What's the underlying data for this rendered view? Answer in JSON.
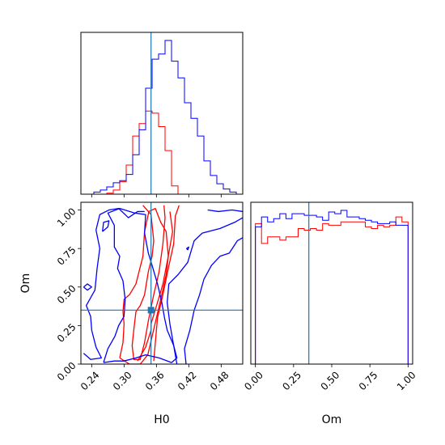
{
  "chart_data": {
    "type": "corner",
    "parameters": [
      "H0",
      "Om"
    ],
    "truths": {
      "H0": 0.35,
      "Om": 0.35
    },
    "truth_color": "#1f77b4",
    "series": [
      {
        "color": "#ff0000"
      },
      {
        "color": "#0000ff"
      }
    ],
    "panels": [
      {
        "id": "hist-H0",
        "type": "histogram",
        "param": "H0",
        "xlim": [
          0.22,
          0.52
        ],
        "bin_edges": [
          0.22,
          0.232,
          0.244,
          0.256,
          0.268,
          0.28,
          0.292,
          0.304,
          0.316,
          0.328,
          0.34,
          0.352,
          0.364,
          0.376,
          0.388,
          0.4,
          0.412,
          0.424,
          0.436,
          0.448,
          0.46,
          0.472,
          0.484,
          0.496,
          0.508,
          0.52
        ],
        "series": [
          {
            "color": "#ff0000",
            "counts": [
              0,
              0,
              0,
              0,
              1,
              4,
              12,
              28,
              56,
              68,
              80,
              78,
              65,
              42,
              8,
              0,
              0,
              0,
              0,
              0,
              0,
              0,
              0,
              0,
              0
            ]
          },
          {
            "color": "#0000ff",
            "counts": [
              0,
              0,
              2,
              4,
              7,
              11,
              13,
              19,
              38,
              62,
              102,
              130,
              135,
              148,
              128,
              112,
              88,
              73,
              56,
              32,
              18,
              10,
              5,
              2,
              0
            ]
          }
        ]
      },
      {
        "id": "contour-H0-Om",
        "type": "contour",
        "xparam": "H0",
        "yparam": "Om",
        "xlim": [
          0.22,
          0.52
        ],
        "ylim": [
          0.0,
          1.05
        ],
        "xticks": [
          "0.24",
          "0.30",
          "0.36",
          "0.42",
          "0.48"
        ],
        "yticks": [
          "0.00",
          "0.25",
          "0.50",
          "0.75",
          "1.00"
        ],
        "xlabel": "H0",
        "ylabel": "Om",
        "series": [
          {
            "color": "#ff0000",
            "levels": [
              [
                [
                  0.335,
                  1.03
                ],
                [
                  0.35,
                  0.97
                ],
                [
                  0.355,
                  0.8
                ],
                [
                  0.352,
                  0.7
                ],
                [
                  0.345,
                  0.6
                ],
                [
                  0.338,
                  0.45
                ],
                [
                  0.33,
                  0.38
                ],
                [
                  0.322,
                  0.34
                ],
                [
                  0.318,
                  0.22
                ],
                [
                  0.315,
                  0.12
                ],
                [
                  0.318,
                  0.03
                ],
                [
                  0.33,
                  0.03
                ],
                [
                  0.338,
                  0.14
                ],
                [
                  0.345,
                  0.28
                ],
                [
                  0.355,
                  0.45
                ],
                [
                  0.365,
                  0.6
                ],
                [
                  0.372,
                  0.78
                ],
                [
                  0.376,
                  0.95
                ],
                [
                  0.374,
                  1.03
                ]
              ],
              [
                [
                  0.292,
                  0.04
                ],
                [
                  0.298,
                  0.14
                ],
                [
                  0.3,
                  0.26
                ],
                [
                  0.298,
                  0.34
                ],
                [
                  0.3,
                  0.42
                ],
                [
                  0.31,
                  0.45
                ],
                [
                  0.322,
                  0.52
                ],
                [
                  0.335,
                  0.7
                ],
                [
                  0.338,
                  0.86
                ],
                [
                  0.346,
                  0.99
                ],
                [
                  0.358,
                  1.01
                ],
                [
                  0.368,
                  0.92
                ],
                [
                  0.378,
                  0.86
                ],
                [
                  0.382,
                  0.7
                ],
                [
                  0.378,
                  0.58
                ],
                [
                  0.368,
                  0.42
                ],
                [
                  0.36,
                  0.3
                ],
                [
                  0.352,
                  0.18
                ],
                [
                  0.344,
                  0.06
                ],
                [
                  0.33,
                  0.0
                ],
                [
                  0.31,
                  0.0
                ],
                [
                  0.292,
                  0.04
                ]
              ],
              [
                [
                  0.355,
                  0.02
                ],
                [
                  0.358,
                  0.14
                ],
                [
                  0.362,
                  0.3
                ],
                [
                  0.372,
                  0.45
                ],
                [
                  0.382,
                  0.62
                ],
                [
                  0.392,
                  0.78
                ],
                [
                  0.395,
                  0.96
                ],
                [
                  0.402,
                  1.03
                ]
              ],
              [
                [
                  0.325,
                  0.02
                ],
                [
                  0.34,
                  0.11
                ],
                [
                  0.35,
                  0.22
                ],
                [
                  0.35,
                  0.26
                ],
                [
                  0.362,
                  0.4
                ],
                [
                  0.372,
                  0.52
                ],
                [
                  0.382,
                  0.7
                ],
                [
                  0.39,
                  0.86
                ],
                [
                  0.385,
                  0.99
                ]
              ]
            ]
          },
          {
            "color": "#0000ff",
            "levels": [
              [
                [
                  0.262,
                  0.01
                ],
                [
                  0.27,
                  0.1
                ],
                [
                  0.283,
                  0.18
                ],
                [
                  0.29,
                  0.25
                ],
                [
                  0.3,
                  0.31
                ],
                [
                  0.302,
                  0.42
                ],
                [
                  0.298,
                  0.54
                ],
                [
                  0.288,
                  0.62
                ],
                [
                  0.292,
                  0.7
                ],
                [
                  0.282,
                  0.76
                ],
                [
                  0.282,
                  0.9
                ],
                [
                  0.27,
                  0.98
                ],
                [
                  0.292,
                  1.01
                ],
                [
                  0.32,
                  0.98
                ],
                [
                  0.34,
                  0.97
                ],
                [
                  0.338,
                  0.85
                ],
                [
                  0.345,
                  0.72
                ],
                [
                  0.352,
                  0.64
                ],
                [
                  0.362,
                  0.52
                ],
                [
                  0.37,
                  0.4
                ],
                [
                  0.375,
                  0.3
                ],
                [
                  0.38,
                  0.22
                ],
                [
                  0.392,
                  0.12
                ],
                [
                  0.398,
                  0.04
                ],
                [
                  0.388,
                  0.01
                ],
                [
                  0.365,
                  0.04
                ],
                [
                  0.34,
                  0.06
                ],
                [
                  0.322,
                  0.04
                ],
                [
                  0.3,
                  0.02
                ],
                [
                  0.282,
                  0.02
                ],
                [
                  0.262,
                  0.01
                ]
              ],
              [
                [
                  0.225,
                  0.5
                ],
                [
                  0.232,
                  0.48
                ],
                [
                  0.24,
                  0.5
                ],
                [
                  0.232,
                  0.52
                ],
                [
                  0.225,
                  0.5
                ]
              ],
              [
                [
                  0.225,
                  0.07
                ],
                [
                  0.238,
                  0.03
                ],
                [
                  0.258,
                  0.04
                ],
                [
                  0.248,
                  0.11
                ],
                [
                  0.24,
                  0.22
                ],
                [
                  0.238,
                  0.31
                ],
                [
                  0.23,
                  0.38
                ],
                [
                  0.246,
                  0.48
                ],
                [
                  0.25,
                  0.62
                ],
                [
                  0.255,
                  0.75
                ],
                [
                  0.248,
                  0.87
                ],
                [
                  0.255,
                  0.97
                ],
                [
                  0.272,
                  1.0
                ],
                [
                  0.29,
                  1.01
                ],
                [
                  0.308,
                  0.95
                ],
                [
                  0.325,
                  0.99
                ],
                [
                  0.338,
                  0.99
                ]
              ],
              [
                [
                  0.26,
                  0.86
                ],
                [
                  0.27,
                  0.89
                ],
                [
                  0.272,
                  0.93
                ],
                [
                  0.262,
                  0.92
                ],
                [
                  0.26,
                  0.86
                ]
              ],
              [
                [
                  0.398,
                  0.0
                ],
                [
                  0.392,
                  0.12
                ],
                [
                  0.385,
                  0.26
                ],
                [
                  0.38,
                  0.4
                ],
                [
                  0.383,
                  0.52
                ],
                [
                  0.4,
                  0.58
                ],
                [
                  0.418,
                  0.66
                ],
                [
                  0.43,
                  0.8
                ],
                [
                  0.445,
                  0.85
                ],
                [
                  0.478,
                  0.88
                ],
                [
                  0.505,
                  0.92
                ],
                [
                  0.52,
                  0.95
                ]
              ],
              [
                [
                  0.415,
                  0.0
                ],
                [
                  0.412,
                  0.1
                ],
                [
                  0.422,
                  0.22
                ],
                [
                  0.43,
                  0.35
                ],
                [
                  0.44,
                  0.45
                ],
                [
                  0.448,
                  0.55
                ],
                [
                  0.462,
                  0.64
                ],
                [
                  0.478,
                  0.7
                ],
                [
                  0.495,
                  0.72
                ],
                [
                  0.51,
                  0.8
                ],
                [
                  0.52,
                  0.82
                ]
              ],
              [
                [
                  0.418,
                  0.74
                ],
                [
                  0.42,
                  0.76
                ],
                [
                  0.416,
                  0.75
                ],
                [
                  0.418,
                  0.74
                ]
              ],
              [
                [
                  0.455,
                  1.0
                ],
                [
                  0.475,
                  0.99
                ],
                [
                  0.5,
                  1.0
                ],
                [
                  0.52,
                  0.99
                ]
              ]
            ]
          }
        ]
      },
      {
        "id": "hist-Om",
        "type": "histogram",
        "param": "Om",
        "xlim": [
          -0.03,
          1.03
        ],
        "xticks": [
          "0.00",
          "0.25",
          "0.50",
          "0.75",
          "1.00"
        ],
        "xlabel": "Om",
        "bin_edges": [
          0.0,
          0.04,
          0.08,
          0.12,
          0.16,
          0.2,
          0.24,
          0.28,
          0.32,
          0.36,
          0.4,
          0.44,
          0.48,
          0.52,
          0.56,
          0.6,
          0.64,
          0.68,
          0.72,
          0.76,
          0.8,
          0.84,
          0.88,
          0.92,
          0.96,
          1.0
        ],
        "series": [
          {
            "color": "#ff0000",
            "counts": [
              85,
              73,
              77,
              77,
              75,
              77,
              77,
              82,
              81,
              82,
              81,
              85,
              84,
              84,
              86,
              86,
              86,
              86,
              83,
              82,
              84,
              83,
              84,
              89,
              86
            ]
          },
          {
            "color": "#0000ff",
            "counts": [
              83,
              89,
              86,
              88,
              91,
              88,
              91,
              91,
              90,
              90,
              89,
              87,
              92,
              91,
              93,
              89,
              89,
              88,
              87,
              86,
              85,
              85,
              86,
              84,
              84
            ]
          }
        ]
      }
    ]
  }
}
